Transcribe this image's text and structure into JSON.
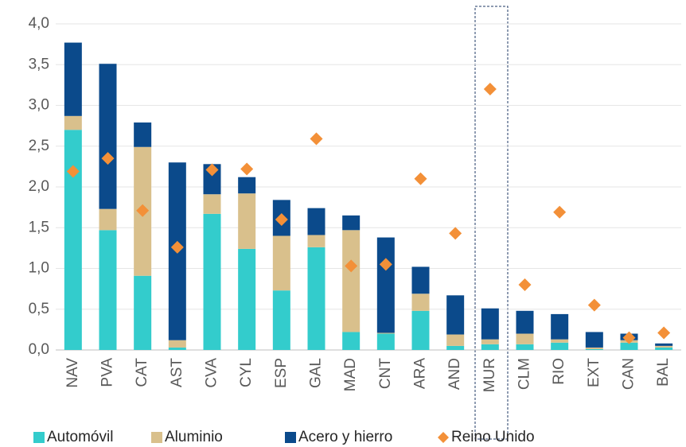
{
  "chart_data": {
    "type": "bar",
    "stacked": true,
    "categories": [
      "NAV",
      "PVA",
      "CAT",
      "AST",
      "CVA",
      "CYL",
      "ESP",
      "GAL",
      "MAD",
      "CNT",
      "ARA",
      "AND",
      "MUR",
      "CLM",
      "RIO",
      "EXT",
      "CAN",
      "BAL"
    ],
    "series": [
      {
        "name": "Automóvil",
        "color": "#33cccc",
        "values": [
          2.7,
          1.47,
          0.91,
          0.03,
          1.67,
          1.24,
          0.73,
          1.26,
          0.22,
          0.2,
          0.48,
          0.05,
          0.07,
          0.07,
          0.09,
          0.01,
          0.09,
          0.03
        ]
      },
      {
        "name": "Aluminio",
        "color": "#d9c08c",
        "values": [
          0.17,
          0.26,
          1.58,
          0.09,
          0.24,
          0.68,
          0.67,
          0.15,
          1.25,
          0.01,
          0.21,
          0.14,
          0.06,
          0.13,
          0.04,
          0.02,
          0.03,
          0.02
        ]
      },
      {
        "name": "Acero y hierro",
        "color": "#0b4a8b",
        "values": [
          0.9,
          1.78,
          0.3,
          2.18,
          0.37,
          0.2,
          0.44,
          0.33,
          0.18,
          1.17,
          0.33,
          0.48,
          0.38,
          0.28,
          0.31,
          0.19,
          0.08,
          0.03
        ]
      },
      {
        "name": "Reino Unido",
        "color": "#f39038",
        "type": "scatter",
        "values": [
          2.19,
          2.35,
          1.71,
          1.26,
          2.21,
          2.22,
          1.6,
          2.59,
          1.03,
          1.05,
          2.1,
          1.43,
          3.2,
          0.8,
          1.69,
          0.55,
          0.15,
          0.21
        ]
      }
    ],
    "ylim": [
      0,
      4
    ],
    "yticks": [
      {
        "value": 0,
        "label": "0,0"
      },
      {
        "value": 0.5,
        "label": "0,5"
      },
      {
        "value": 1,
        "label": "1,0"
      },
      {
        "value": 1.5,
        "label": "1,5"
      },
      {
        "value": 2,
        "label": "2,0"
      },
      {
        "value": 2.5,
        "label": "2,5"
      },
      {
        "value": 3,
        "label": "3,0"
      },
      {
        "value": 3.5,
        "label": "3,5"
      },
      {
        "value": 4,
        "label": "4,0"
      }
    ],
    "grid": true,
    "legend": "bottom"
  }
}
